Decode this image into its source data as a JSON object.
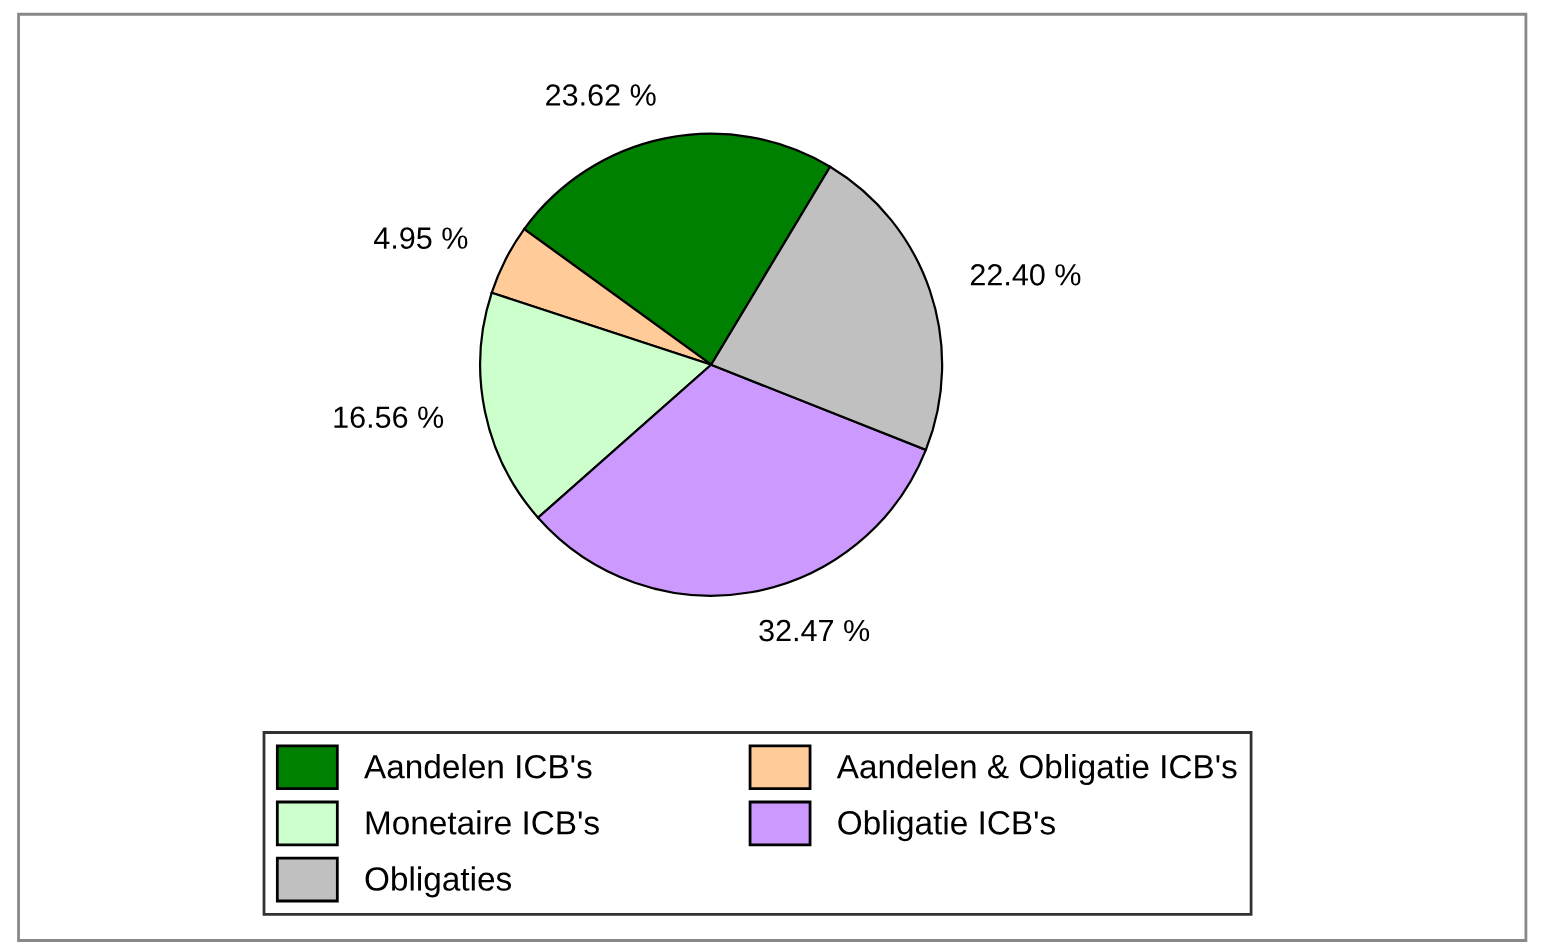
{
  "chart_data": {
    "type": "pie",
    "categories": [
      "Aandelen ICB's",
      "Aandelen & Obligatie ICB's",
      "Monetaire ICB's",
      "Obligatie ICB's",
      "Obligaties"
    ],
    "values": [
      23.62,
      4.95,
      16.56,
      32.47,
      22.4
    ],
    "colors": [
      "#008000",
      "#ffcc99",
      "#ccffcc",
      "#cc99ff",
      "#c0c0c0"
    ],
    "value_labels": [
      "23.62 %",
      "4.95 %",
      "16.56 %",
      "32.47 %",
      "22.40 %"
    ],
    "legend": "bottom"
  }
}
